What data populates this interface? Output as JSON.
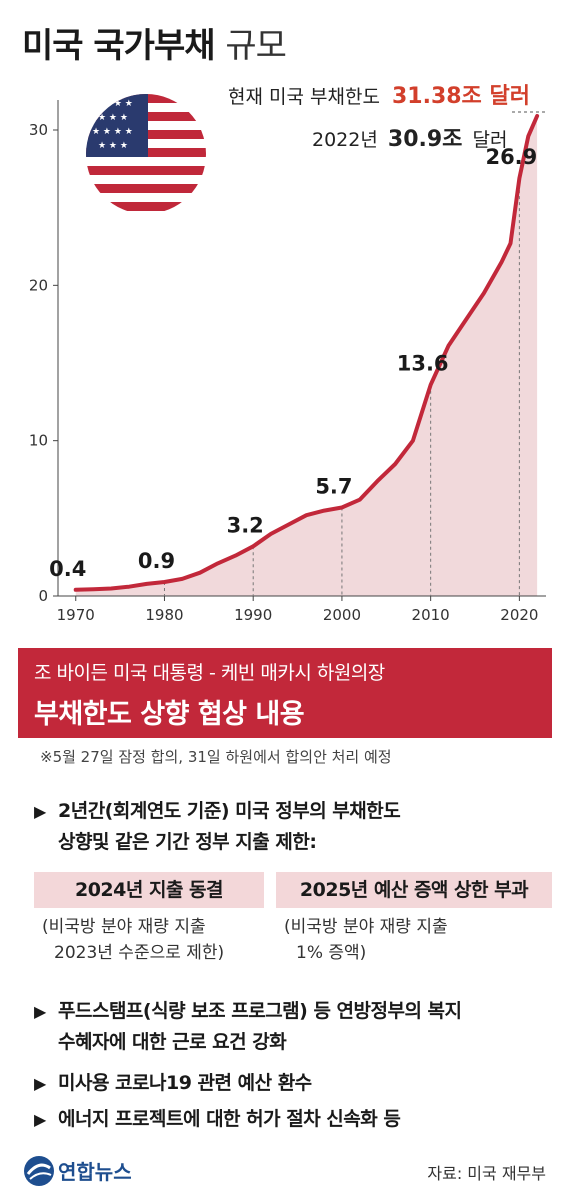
{
  "title": {
    "main": "미국 국가부채",
    "sub": "규모"
  },
  "annotations": {
    "current_prefix": "현재 미국 부채한도",
    "current_value": "31.38조 달러",
    "year2022_prefix": "2022년",
    "year2022_value": "30.9조",
    "year2022_suffix": "달러"
  },
  "chart_data": {
    "type": "area",
    "x": [
      1970,
      1972,
      1974,
      1976,
      1978,
      1980,
      1982,
      1984,
      1986,
      1988,
      1990,
      1992,
      1994,
      1996,
      1998,
      2000,
      2002,
      2004,
      2006,
      2008,
      2010,
      2012,
      2014,
      2016,
      2018,
      2019,
      2020,
      2021,
      2022
    ],
    "series": [
      {
        "values": [
          0.4,
          0.43,
          0.48,
          0.6,
          0.78,
          0.9,
          1.1,
          1.5,
          2.1,
          2.6,
          3.2,
          4.0,
          4.6,
          5.2,
          5.5,
          5.7,
          6.2,
          7.4,
          8.5,
          10.0,
          13.6,
          16.1,
          17.8,
          19.5,
          21.5,
          22.7,
          26.9,
          29.6,
          30.9
        ]
      }
    ],
    "data_labels": [
      {
        "x": 1970,
        "y": 0.4,
        "text": "0.4"
      },
      {
        "x": 1980,
        "y": 0.9,
        "text": "0.9"
      },
      {
        "x": 1990,
        "y": 3.2,
        "text": "3.2"
      },
      {
        "x": 2000,
        "y": 5.7,
        "text": "5.7"
      },
      {
        "x": 2010,
        "y": 13.6,
        "text": "13.6"
      },
      {
        "x": 2020,
        "y": 26.9,
        "text": "26.9"
      }
    ],
    "x_ticks": [
      "1970",
      "1980",
      "1990",
      "2000",
      "2010",
      "2020"
    ],
    "y_ticks": [
      "0",
      "10",
      "20",
      "30"
    ],
    "xlim": [
      1968,
      2023
    ],
    "ylim": [
      0,
      31
    ],
    "line_color": "#c2283a",
    "fill_color": "#f1d9db",
    "grid": false
  },
  "banner": {
    "line1": "조 바이든 미국 대통령 - 케빈 매카시 하원의장",
    "line2": "부채한도 상향 협상 내용"
  },
  "note": "※5월 27일 잠정 합의, 31일 하원에서 합의안 처리 예정",
  "points": [
    {
      "line1": "2년간(회계연도 기준) 미국 정부의 부채한도",
      "line2": "상향및 같은 기간 정부 지출 제한:"
    },
    {
      "line1": "푸드스탬프(식량 보조 프로그램) 등 연방정부의 복지",
      "line2": "수혜자에 대한 근로 요건 강화"
    },
    {
      "line1": "미사용 코로나19 관련 예산 환수"
    },
    {
      "line1": "에너지 프로젝트에 대한 허가 절차 신속화 등"
    }
  ],
  "bullet_mark": "▶",
  "policy": [
    {
      "label": "2024년 지출 동결",
      "note1": "(비국방 분야 재량 지출",
      "note2": "2023년 수준으로 제한)"
    },
    {
      "label": "2025년 예산 증액 상한 부과",
      "note1": "(비국방 분야 재량 지출",
      "note2": "1% 증액)"
    }
  ],
  "logo": "연합뉴스",
  "source": "자료: 미국 재무부",
  "colors": {
    "accent_red": "#c2283a",
    "highlight_red": "#d23f2b",
    "box_pink": "#f3d7d9",
    "logo_blue": "#1e4e8f"
  }
}
